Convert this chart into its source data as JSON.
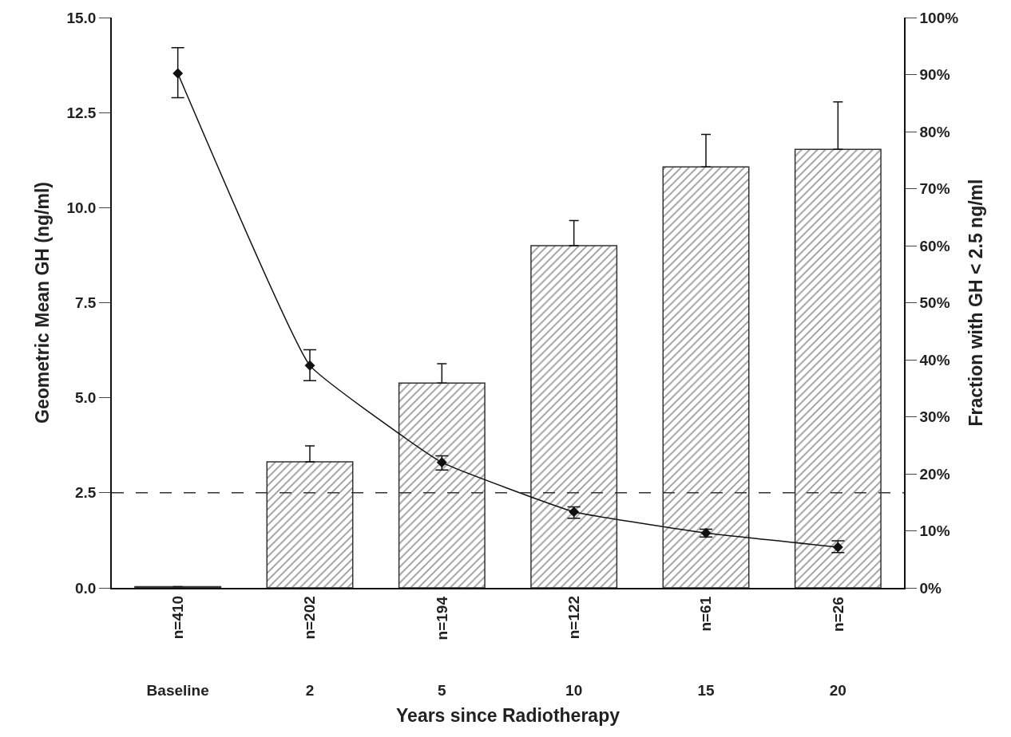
{
  "chart_data": {
    "type": "bar",
    "xlabel": "Years since Radiotherapy",
    "ylabel": "Geometric Mean GH (ng/ml)",
    "y2label": "Fraction with GH < 2.5 ng/ml",
    "categories": [
      "Baseline",
      "2",
      "5",
      "10",
      "15",
      "20"
    ],
    "annotations": [
      "n=410",
      "n=202",
      "n=194",
      "n=122",
      "n=61",
      "n=26"
    ],
    "series": [
      {
        "axis": "y2",
        "color": "#333333",
        "values": [
          0.2,
          22.1,
          35.9,
          60.0,
          73.8,
          76.9
        ],
        "errors": [
          null,
          [
            22.1,
            24.9
          ],
          [
            35.9,
            39.3
          ],
          [
            60.0,
            64.4
          ],
          [
            73.8,
            79.5
          ],
          [
            76.9,
            85.2
          ]
        ]
      },
      {
        "type": "line",
        "axis": "y",
        "color": "#111111",
        "marker": "diamond",
        "line_style": "solid",
        "values": [
          13.53,
          5.85,
          3.3,
          2.0,
          1.44,
          1.07
        ],
        "errors": [
          [
            12.89,
            14.21
          ],
          [
            5.45,
            6.26
          ],
          [
            3.1,
            3.47
          ],
          [
            1.83,
            2.13
          ],
          [
            1.34,
            1.54
          ],
          [
            0.93,
            1.24
          ]
        ]
      }
    ],
    "ylim": [
      0,
      15
    ],
    "yticks": [
      {
        "value": 0,
        "label": "0.0"
      },
      {
        "value": 2.5,
        "label": "2.5"
      },
      {
        "value": 5,
        "label": "5.0"
      },
      {
        "value": 7.5,
        "label": "7.5"
      },
      {
        "value": 10,
        "label": "10.0"
      },
      {
        "value": 12.5,
        "label": "12.5"
      },
      {
        "value": 15,
        "label": "15.0"
      }
    ],
    "y2lim": [
      0,
      100
    ],
    "y2ticks": [
      {
        "value": 0,
        "label": "0%"
      },
      {
        "value": 10,
        "label": "10%"
      },
      {
        "value": 20,
        "label": "20%"
      },
      {
        "value": 30,
        "label": "30%"
      },
      {
        "value": 40,
        "label": "40%"
      },
      {
        "value": 50,
        "label": "50%"
      },
      {
        "value": 60,
        "label": "60%"
      },
      {
        "value": 70,
        "label": "70%"
      },
      {
        "value": 80,
        "label": "80%"
      },
      {
        "value": 90,
        "label": "90%"
      },
      {
        "value": 100,
        "label": "100%"
      }
    ],
    "ref_lines": [
      {
        "axis": "y",
        "value": 2.5,
        "color": "#333333",
        "line_style": "dashed"
      }
    ]
  }
}
